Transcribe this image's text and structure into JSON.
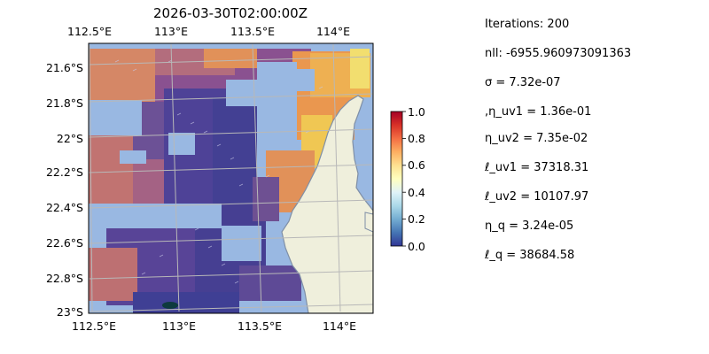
{
  "map": {
    "title": "2026-03-30T02:00:00Z",
    "x_ticks": [
      "112.5°E",
      "113°E",
      "113.5°E",
      "114°E"
    ],
    "y_ticks": [
      "21.6°S",
      "21.8°S",
      "22°S",
      "22.2°S",
      "22.4°S",
      "22.6°S",
      "22.8°S",
      "23°S"
    ],
    "colors": {
      "ocean": "#99b8e2",
      "land": "#efefdc",
      "coast": "#7f8fa6",
      "grid": "#b8b8b8"
    }
  },
  "colorbar": {
    "ticks": [
      "0.0",
      "0.2",
      "0.4",
      "0.6",
      "0.8",
      "1.0"
    ],
    "colormap": "RdYlBu_r"
  },
  "stats": {
    "iterations": "Iterations: 200",
    "nll": "nll: -6955.960973091363",
    "sigma": "σ = 7.32e-07",
    "eta_uv1": ",η_uv1 = 1.36e-01",
    "eta_uv2": "η_uv2 = 7.35e-02",
    "ell_uv1": "ℓ_uv1 = 37318.31",
    "ell_uv2": "ℓ_uv2 = 10107.97",
    "eta_q": "η_q = 3.24e-05",
    "ell_q": "ℓ_q = 38684.58"
  }
}
